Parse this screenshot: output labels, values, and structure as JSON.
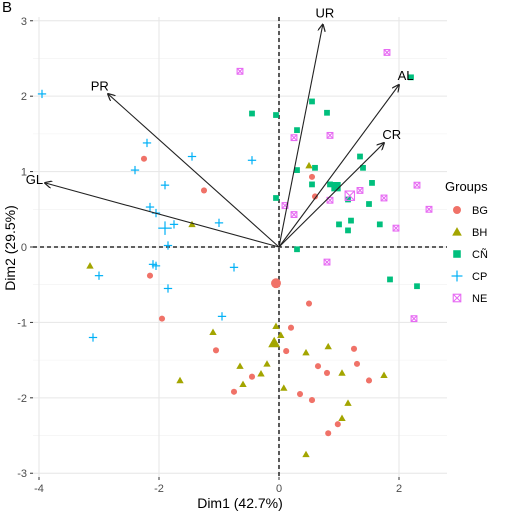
{
  "panel_label": "B",
  "chart_data": {
    "type": "scatter",
    "title": "",
    "xlabel": "Dim1 (42.7%)",
    "ylabel": "Dim2 (29.5%)",
    "xlim": [
      -4.1,
      2.8
    ],
    "ylim": [
      -3.05,
      3.05
    ],
    "xticks": [
      -4,
      -2,
      0,
      2
    ],
    "yticks": [
      -3,
      -2,
      -1,
      0,
      1,
      2,
      3
    ],
    "grid": true,
    "legend_title": "Groups",
    "legend_position": "right",
    "vectors": [
      {
        "label": "UR",
        "x": 0.73,
        "y": 2.95
      },
      {
        "label": "AL",
        "x": 2.0,
        "y": 2.15
      },
      {
        "label": "CR",
        "x": 1.75,
        "y": 1.38
      },
      {
        "label": "PR",
        "x": -2.85,
        "y": 2.03
      },
      {
        "label": "GL",
        "x": -3.9,
        "y": 0.85
      }
    ],
    "series": [
      {
        "name": "BG",
        "color": "#F07268",
        "marker": "circle",
        "centroid": [
          -0.05,
          -0.48
        ],
        "points": [
          [
            -2.25,
            1.17
          ],
          [
            -1.25,
            0.75
          ],
          [
            -2.15,
            -0.38
          ],
          [
            -1.95,
            -0.95
          ],
          [
            0.55,
            0.93
          ],
          [
            0.6,
            0.67
          ],
          [
            0.5,
            -0.75
          ],
          [
            0.2,
            -1.07
          ],
          [
            0.12,
            -1.38
          ],
          [
            -0.45,
            -1.72
          ],
          [
            -0.75,
            -1.92
          ],
          [
            0.8,
            -1.67
          ],
          [
            -1.05,
            -1.37
          ],
          [
            1.25,
            -1.35
          ],
          [
            1.3,
            -1.55
          ],
          [
            1.5,
            -1.77
          ],
          [
            0.82,
            -2.47
          ],
          [
            0.98,
            -2.35
          ],
          [
            0.65,
            -1.58
          ],
          [
            0.35,
            -1.95
          ],
          [
            0.55,
            -2.03
          ]
        ]
      },
      {
        "name": "BH",
        "color": "#A3A500",
        "marker": "triangle",
        "centroid": [
          -0.08,
          -1.27
        ],
        "points": [
          [
            -3.15,
            -0.25
          ],
          [
            -1.45,
            0.3
          ],
          [
            0.5,
            1.08
          ],
          [
            -1.1,
            -1.13
          ],
          [
            -0.65,
            -1.58
          ],
          [
            -0.3,
            -1.68
          ],
          [
            -0.6,
            -1.82
          ],
          [
            -1.65,
            -1.77
          ],
          [
            -0.05,
            -1.05
          ],
          [
            0.03,
            -1.17
          ],
          [
            -0.1,
            -1.27
          ],
          [
            -0.2,
            -1.55
          ],
          [
            0.08,
            -1.87
          ],
          [
            0.82,
            -1.32
          ],
          [
            0.45,
            -1.4
          ],
          [
            1.05,
            -1.67
          ],
          [
            1.75,
            -1.7
          ],
          [
            1.15,
            -2.07
          ],
          [
            1.05,
            -2.27
          ],
          [
            0.45,
            -2.75
          ]
        ]
      },
      {
        "name": "CÑ",
        "color": "#00BF7D",
        "marker": "square",
        "centroid": [
          0.95,
          0.8
        ],
        "points": [
          [
            -0.45,
            1.77
          ],
          [
            -0.05,
            1.75
          ],
          [
            0.3,
            1.55
          ],
          [
            0.55,
            1.93
          ],
          [
            0.8,
            1.78
          ],
          [
            2.2,
            2.25
          ],
          [
            1.35,
            1.2
          ],
          [
            0.6,
            1.05
          ],
          [
            0.3,
            1.02
          ],
          [
            -0.05,
            0.65
          ],
          [
            0.55,
            0.83
          ],
          [
            0.85,
            0.83
          ],
          [
            1.4,
            1.05
          ],
          [
            1.55,
            0.85
          ],
          [
            1.5,
            0.57
          ],
          [
            1.68,
            0.3
          ],
          [
            1.15,
            0.63
          ],
          [
            1.2,
            0.35
          ],
          [
            1.0,
            0.3
          ],
          [
            0.3,
            -0.03
          ],
          [
            1.15,
            0.22
          ],
          [
            1.85,
            -0.43
          ],
          [
            2.3,
            -0.52
          ]
        ]
      },
      {
        "name": "CP",
        "color": "#00B0F6",
        "marker": "cross",
        "centroid": [
          -1.9,
          0.25
        ],
        "points": [
          [
            -3.95,
            2.03
          ],
          [
            -2.2,
            1.38
          ],
          [
            -1.45,
            1.2
          ],
          [
            -0.45,
            1.15
          ],
          [
            -2.4,
            1.02
          ],
          [
            -1.9,
            0.82
          ],
          [
            -2.05,
            0.45
          ],
          [
            -2.15,
            0.53
          ],
          [
            -1.75,
            0.3
          ],
          [
            -1.0,
            0.32
          ],
          [
            -1.85,
            0.02
          ],
          [
            -2.05,
            -0.25
          ],
          [
            -2.1,
            -0.23
          ],
          [
            -0.75,
            -0.27
          ],
          [
            -3.0,
            -0.38
          ],
          [
            -1.85,
            -0.55
          ],
          [
            -0.95,
            -0.92
          ],
          [
            -3.1,
            -1.2
          ]
        ]
      },
      {
        "name": "NE",
        "color": "#E76BF3",
        "marker": "boxx",
        "centroid": [
          1.18,
          0.68
        ],
        "points": [
          [
            -0.65,
            2.33
          ],
          [
            1.8,
            2.58
          ],
          [
            0.25,
            1.45
          ],
          [
            0.85,
            1.48
          ],
          [
            1.35,
            0.75
          ],
          [
            1.75,
            0.65
          ],
          [
            2.3,
            0.82
          ],
          [
            2.5,
            0.5
          ],
          [
            0.1,
            0.55
          ],
          [
            1.95,
            0.25
          ],
          [
            0.85,
            0.62
          ],
          [
            0.8,
            -0.2
          ],
          [
            0.25,
            0.43
          ],
          [
            2.25,
            -0.95
          ]
        ]
      }
    ]
  }
}
